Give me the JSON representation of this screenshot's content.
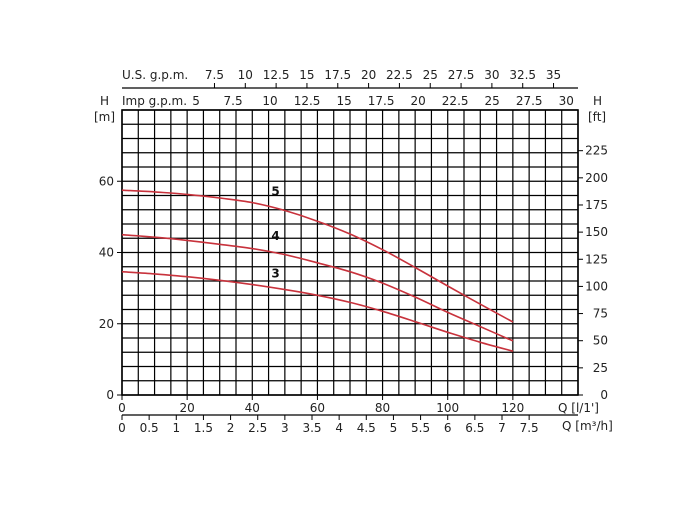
{
  "chart_data": {
    "type": "line",
    "title": "",
    "colors": {
      "curve": "#c8323c",
      "grid": "#000000"
    },
    "grid": true,
    "x_axis": {
      "label": "Q [l/1']",
      "range": [
        0,
        140
      ],
      "ticks": [
        "0",
        "20",
        "40",
        "60",
        "80",
        "100",
        "120"
      ],
      "tick_values": [
        0,
        20,
        40,
        60,
        80,
        100,
        120
      ]
    },
    "x_axis_m3h": {
      "label": "Q [m³/h]",
      "ticks": [
        "0",
        "0.5",
        "1",
        "1.5",
        "2",
        "2.5",
        "3",
        "3.5",
        "4",
        "4.5",
        "5",
        "5.5",
        "6",
        "6.5",
        "7",
        "7.5"
      ],
      "tick_values": [
        0,
        0.5,
        1,
        1.5,
        2,
        2.5,
        3,
        3.5,
        4,
        4.5,
        5,
        5.5,
        6,
        6.5,
        7,
        7.5
      ]
    },
    "x_axis_usgpm": {
      "label": "U.S. g.p.m.",
      "ticks": [
        "7.5",
        "10",
        "12.5",
        "15",
        "17.5",
        "20",
        "22.5",
        "25",
        "27.5",
        "30",
        "32.5",
        "35"
      ],
      "tick_values": [
        7.5,
        10,
        12.5,
        15,
        17.5,
        20,
        22.5,
        25,
        27.5,
        30,
        32.5,
        35
      ]
    },
    "x_axis_impgpm": {
      "label": "Imp g.p.m.",
      "ticks": [
        "5",
        "7.5",
        "10",
        "12.5",
        "15",
        "17.5",
        "20",
        "22.5",
        "25",
        "27.5",
        "30"
      ],
      "tick_values": [
        5,
        7.5,
        10,
        12.5,
        15,
        17.5,
        20,
        22.5,
        25,
        27.5,
        30
      ]
    },
    "y_axis_left": {
      "label_top": "H",
      "label_unit": "[m]",
      "range": [
        0,
        80
      ],
      "ticks": [
        "0",
        "20",
        "40",
        "60"
      ],
      "tick_values": [
        0,
        20,
        40,
        60
      ]
    },
    "y_axis_right": {
      "label_top": "H",
      "label_unit": "[ft]",
      "ticks": [
        "0",
        "25",
        "50",
        "75",
        "100",
        "125",
        "150",
        "175",
        "200",
        "225"
      ],
      "tick_values": [
        0,
        25,
        50,
        75,
        100,
        125,
        150,
        175,
        200,
        225
      ]
    },
    "series": [
      {
        "name": "3",
        "label_at": [
          44,
          33
        ],
        "x": [
          0,
          10,
          20,
          30,
          40,
          50,
          60,
          70,
          80,
          90,
          100,
          110,
          120
        ],
        "y": [
          34.6,
          34.0,
          33.2,
          32.2,
          31.0,
          29.6,
          28.0,
          26.0,
          23.5,
          20.6,
          17.6,
          14.8,
          12.3
        ]
      },
      {
        "name": "4",
        "label_at": [
          44,
          43.5
        ],
        "x": [
          0,
          10,
          20,
          30,
          40,
          50,
          60,
          70,
          80,
          90,
          100,
          110,
          120
        ],
        "y": [
          45.0,
          44.3,
          43.4,
          42.3,
          41.1,
          39.4,
          37.1,
          34.6,
          31.4,
          27.5,
          23.2,
          19.2,
          15.2
        ]
      },
      {
        "name": "5",
        "label_at": [
          44,
          56
        ],
        "x": [
          0,
          10,
          20,
          30,
          40,
          50,
          60,
          70,
          80,
          90,
          100,
          110,
          120
        ],
        "y": [
          57.5,
          57.0,
          56.3,
          55.3,
          54.0,
          51.8,
          48.8,
          45.2,
          40.8,
          35.8,
          30.6,
          25.5,
          20.5
        ]
      }
    ]
  }
}
